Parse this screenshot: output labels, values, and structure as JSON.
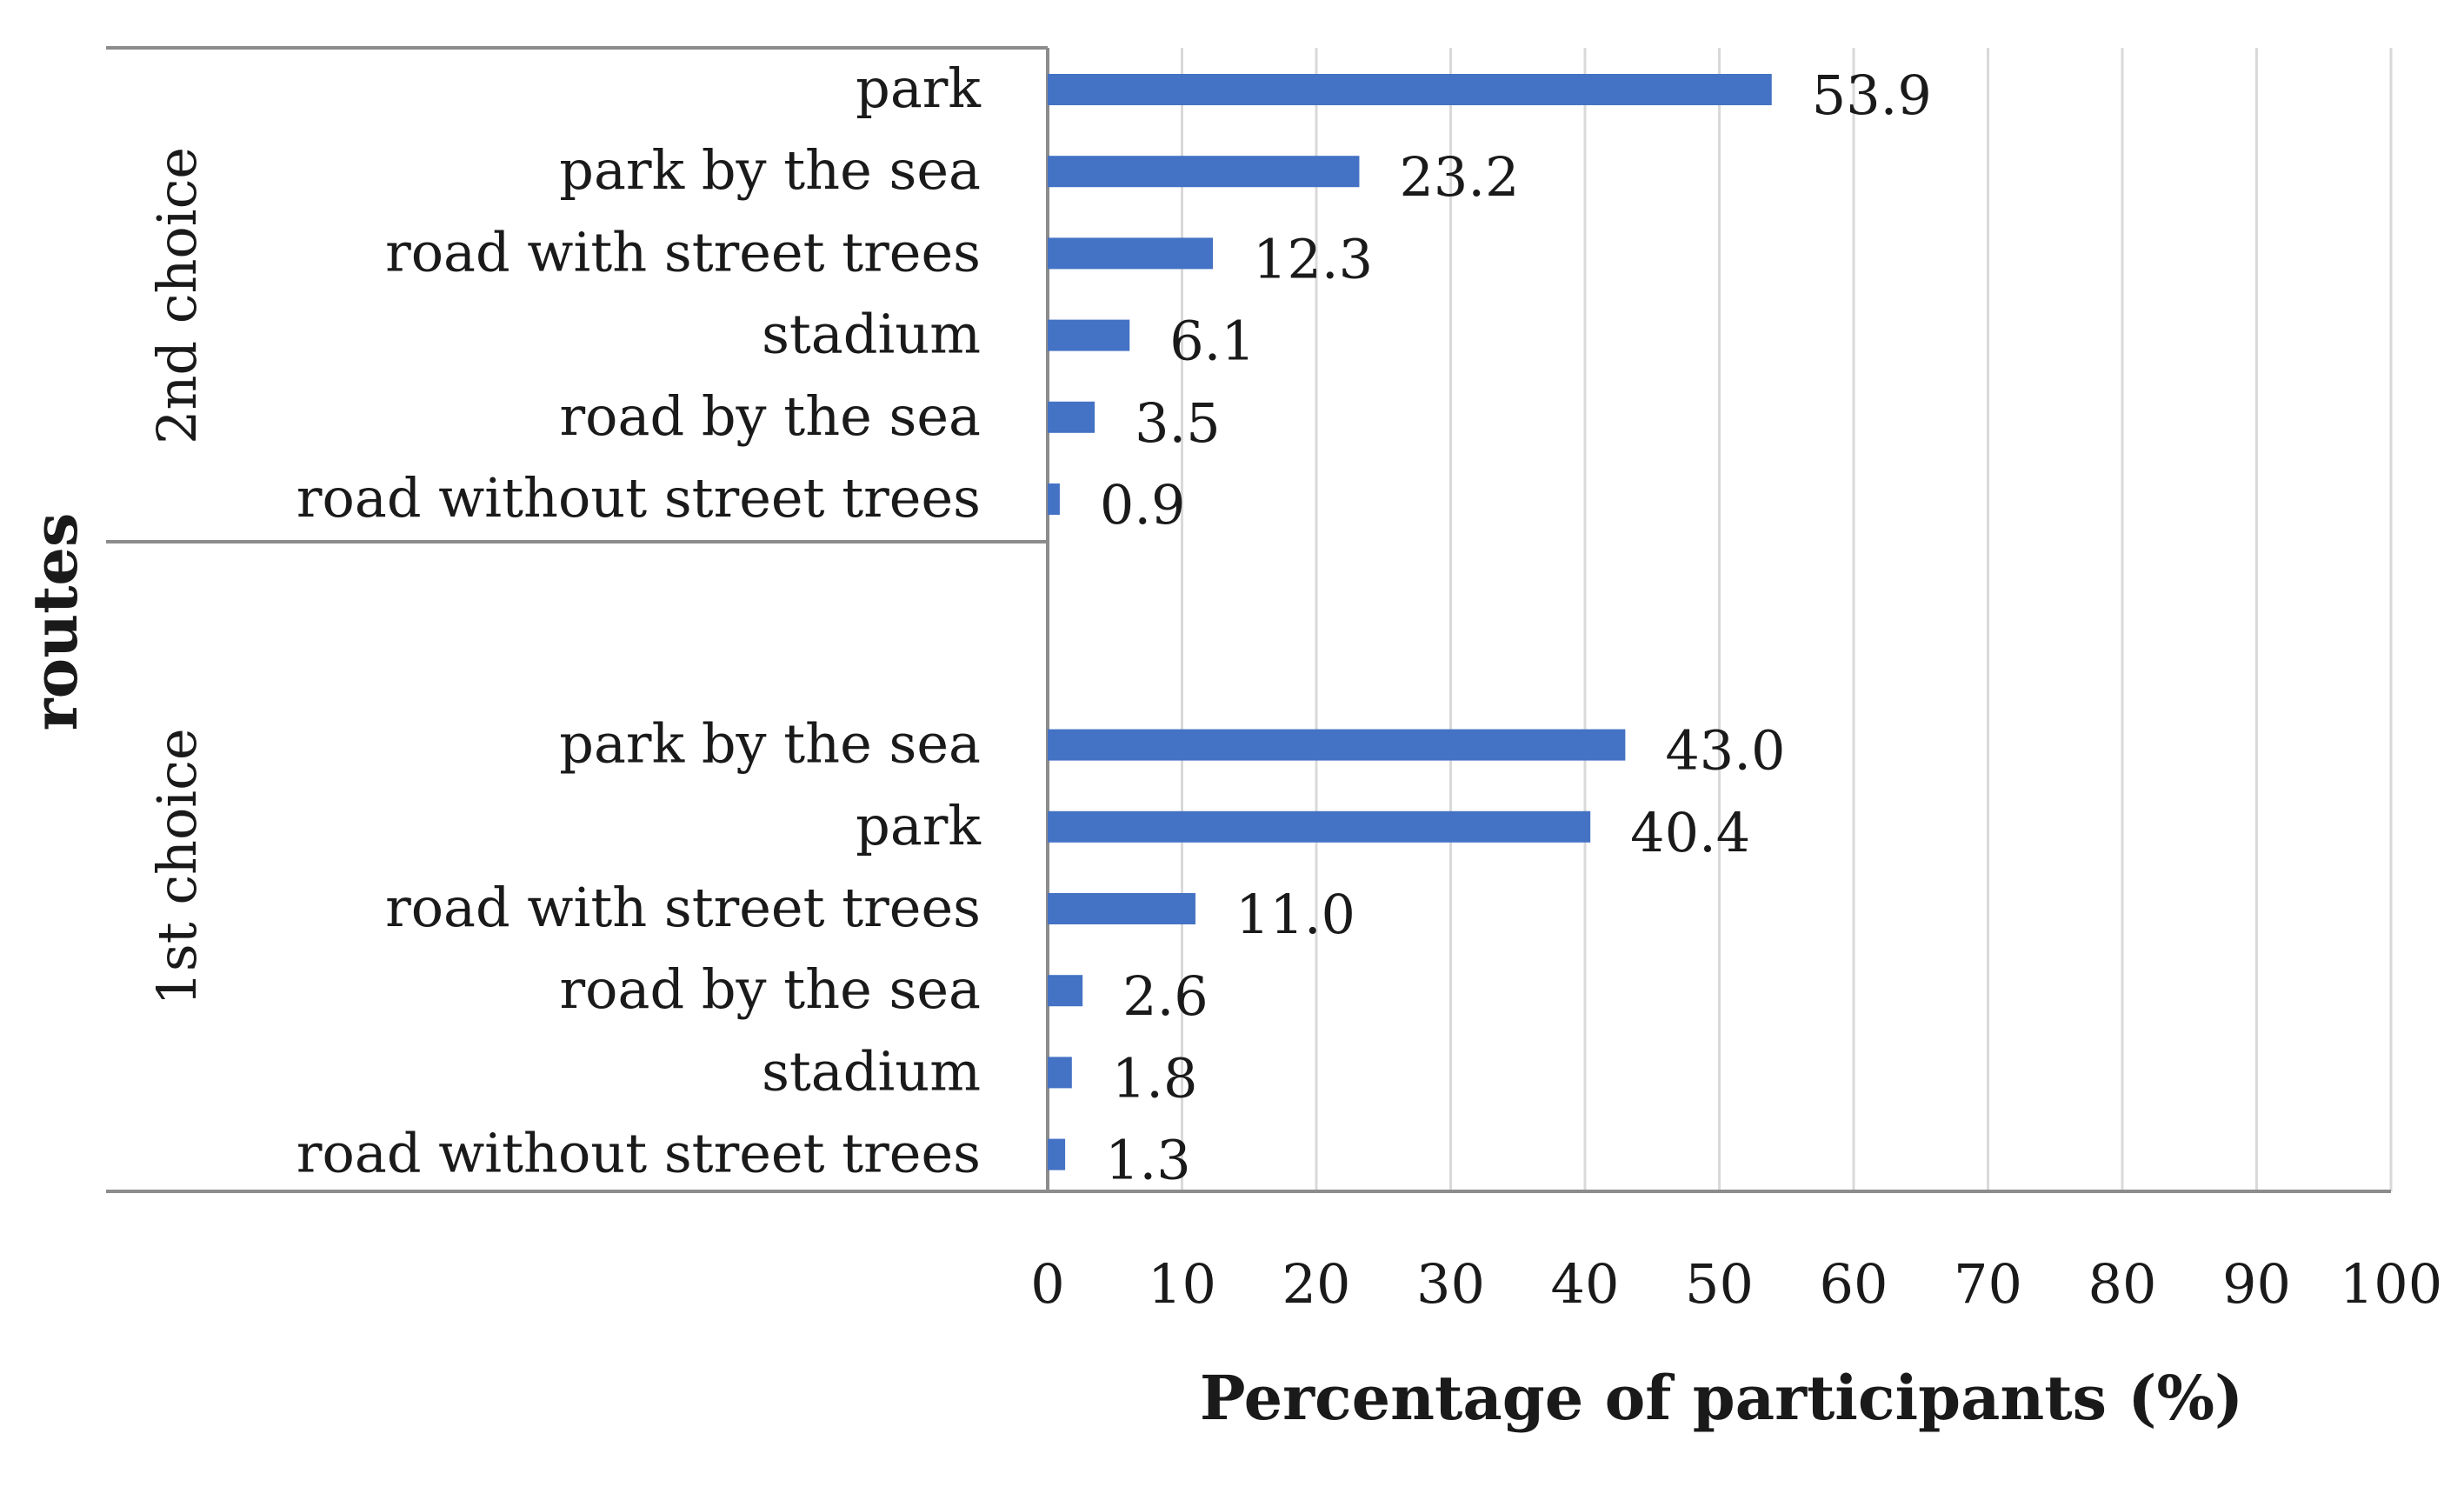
{
  "chart_data": {
    "type": "bar",
    "orientation": "horizontal",
    "xlabel": "Percentage of participants (%)",
    "ylabel": "routes",
    "xlim": [
      0,
      100
    ],
    "xticks": [
      "0",
      "10",
      "20",
      "30",
      "40",
      "50",
      "60",
      "70",
      "80",
      "90",
      "100"
    ],
    "grid": "vertical",
    "bar_color": "#4472C4",
    "groups": [
      {
        "name": "2nd choice",
        "items": [
          {
            "label": "park",
            "value": 53.9,
            "display": "53.9"
          },
          {
            "label": "park by the sea",
            "value": 23.2,
            "display": "23.2"
          },
          {
            "label": "road with street trees",
            "value": 12.3,
            "display": "12.3"
          },
          {
            "label": "stadium",
            "value": 6.1,
            "display": "6.1"
          },
          {
            "label": "road by the sea",
            "value": 3.5,
            "display": "3.5"
          },
          {
            "label": "road without street trees",
            "value": 0.9,
            "display": "0.9"
          }
        ]
      },
      {
        "name": "1st choice",
        "items": [
          {
            "label": "park by the sea",
            "value": 43.0,
            "display": "43.0"
          },
          {
            "label": "park",
            "value": 40.4,
            "display": "40.4"
          },
          {
            "label": "road with street trees",
            "value": 11.0,
            "display": "11.0"
          },
          {
            "label": "road by the sea",
            "value": 2.6,
            "display": "2.6"
          },
          {
            "label": "stadium",
            "value": 1.8,
            "display": "1.8"
          },
          {
            "label": "road without street trees",
            "value": 1.3,
            "display": "1.3"
          }
        ]
      }
    ]
  }
}
